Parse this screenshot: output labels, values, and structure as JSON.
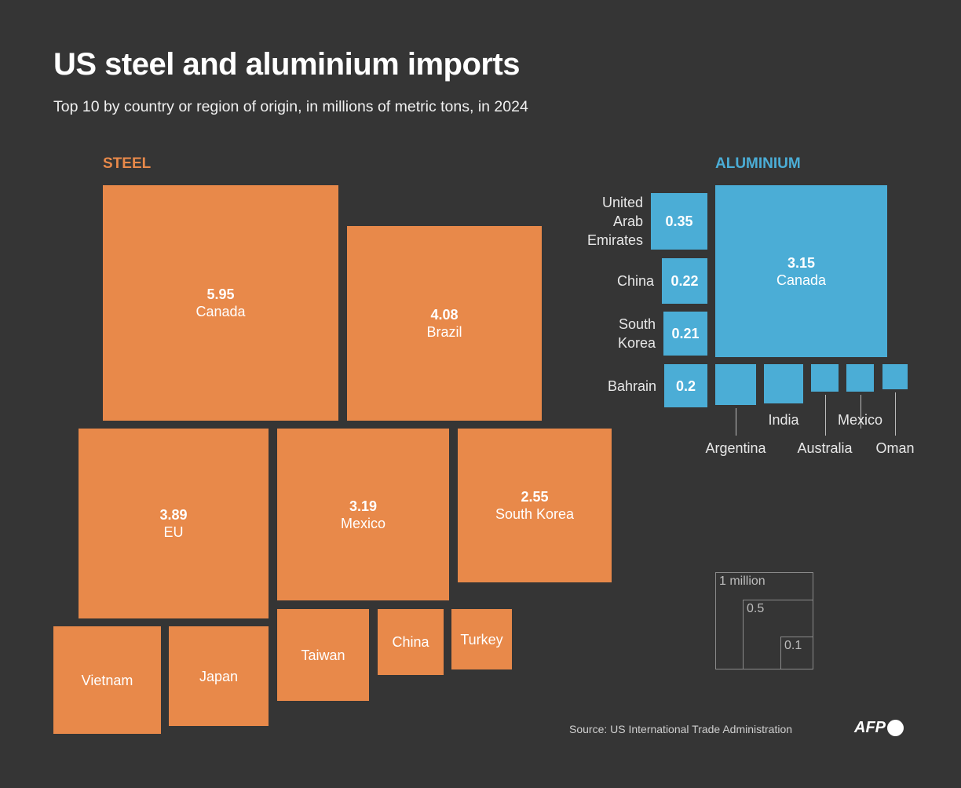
{
  "title": "US steel and aluminium imports",
  "subtitle": "Top 10 by country or region of origin, in millions of metric tons, in 2024",
  "source": "Source: US International Trade Administration",
  "logo": "AFP",
  "colors": {
    "steel": "#e8894a",
    "aluminium": "#4badd6",
    "background": "#353535"
  },
  "chart_data": [
    {
      "type": "proportional-squares",
      "title": "STEEL",
      "unit": "millions of metric tons",
      "categories": [
        "Canada",
        "Brazil",
        "EU",
        "Mexico",
        "South Korea",
        "Vietnam",
        "Japan",
        "Taiwan",
        "China",
        "Turkey"
      ],
      "values": [
        5.95,
        4.08,
        3.89,
        3.19,
        2.55,
        1.2,
        1.05,
        0.9,
        0.46,
        0.39
      ],
      "labels": [
        "5.95",
        "4.08",
        "3.89",
        "3.19",
        "2.55",
        "",
        "",
        "",
        "",
        ""
      ]
    },
    {
      "type": "proportional-squares",
      "title": "ALUMINIUM",
      "unit": "millions of metric tons",
      "categories": [
        "Canada",
        "United Arab Emirates",
        "China",
        "South Korea",
        "Bahrain",
        "Argentina",
        "India",
        "Australia",
        "Mexico",
        "Oman"
      ],
      "display_names": [
        "Canada",
        "United\nArab\nEmirates",
        "China",
        "South\nKorea",
        "Bahrain",
        "Argentina",
        "India",
        "Australia",
        "Mexico",
        "Oman"
      ],
      "values": [
        3.15,
        0.35,
        0.22,
        0.21,
        0.2,
        0.18,
        0.16,
        0.08,
        0.08,
        0.07
      ],
      "labels": [
        "3.15",
        "0.35",
        "0.22",
        "0.21",
        "0.2",
        "",
        "",
        "",
        "",
        ""
      ]
    }
  ],
  "legend": {
    "items": [
      "1 million",
      "0.5",
      "0.1"
    ],
    "values": [
      1,
      0.5,
      0.1
    ]
  }
}
